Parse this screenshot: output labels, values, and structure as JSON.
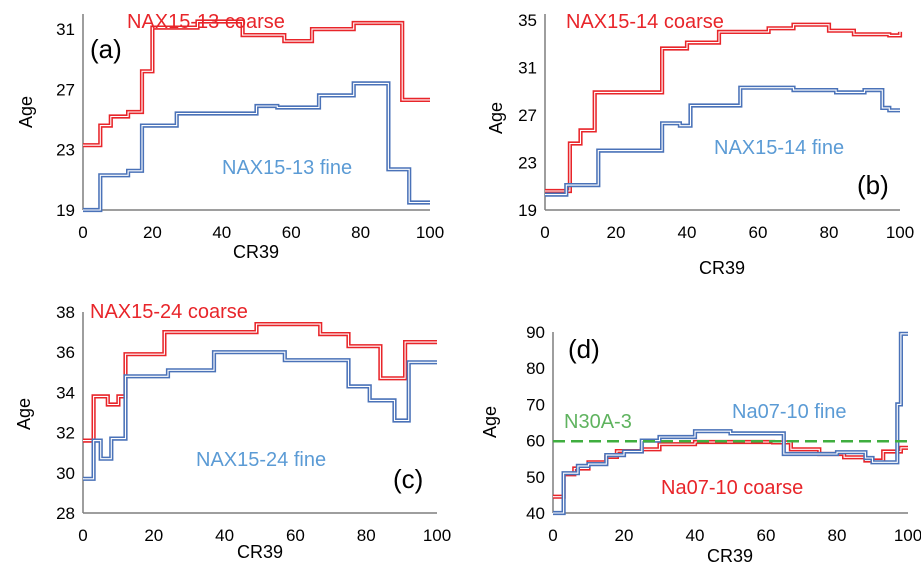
{
  "chart_data": [
    {
      "type": "line",
      "panel": "(a)",
      "xlabel": "CR39",
      "ylabel": "Age",
      "xlim": [
        0,
        100
      ],
      "ylim": [
        19,
        32
      ],
      "xticks": [
        0,
        20,
        40,
        60,
        80,
        100
      ],
      "yticks": [
        19,
        23,
        27,
        31
      ],
      "grid": false,
      "series": [
        {
          "name": "NAX15-13 coarse",
          "color": "#e8252a",
          "steps": [
            [
              0,
              23.3
            ],
            [
              5,
              24.6
            ],
            [
              8,
              25.2
            ],
            [
              13,
              25.5
            ],
            [
              17,
              28.2
            ],
            [
              20,
              31.1
            ],
            [
              33,
              31.5
            ],
            [
              46,
              30.6
            ],
            [
              58,
              30.2
            ],
            [
              66,
              31.0
            ],
            [
              78,
              31.4
            ],
            [
              92,
              26.3
            ],
            [
              100,
              26.3
            ]
          ]
        },
        {
          "name": "NAX15-13 fine",
          "color": "#4a72b8",
          "steps": [
            [
              0,
              19.0
            ],
            [
              5,
              21.3
            ],
            [
              13,
              21.6
            ],
            [
              17,
              24.6
            ],
            [
              27,
              25.4
            ],
            [
              50,
              25.9
            ],
            [
              56,
              25.8
            ],
            [
              68,
              26.6
            ],
            [
              78,
              27.4
            ],
            [
              88,
              21.7
            ],
            [
              94,
              19.5
            ],
            [
              100,
              19.5
            ]
          ]
        }
      ]
    },
    {
      "type": "line",
      "panel": "(b)",
      "xlabel": "CR39",
      "ylabel": "Age",
      "xlim": [
        0,
        100
      ],
      "ylim": [
        19,
        35
      ],
      "xticks": [
        0,
        20,
        40,
        60,
        80,
        100
      ],
      "yticks": [
        19,
        23,
        27,
        31,
        35
      ],
      "grid": false,
      "series": [
        {
          "name": "NAX15-14 coarse",
          "color": "#e8252a",
          "steps": [
            [
              0,
              20.6
            ],
            [
              7,
              24.6
            ],
            [
              10,
              25.7
            ],
            [
              14,
              28.9
            ],
            [
              33,
              32.6
            ],
            [
              40,
              33.1
            ],
            [
              49,
              34.0
            ],
            [
              63,
              34.3
            ],
            [
              70,
              34.6
            ],
            [
              80,
              34.1
            ],
            [
              87,
              33.8
            ],
            [
              97,
              33.7
            ],
            [
              100,
              34.0
            ]
          ]
        },
        {
          "name": "NAX15-14 fine",
          "color": "#4a72b8",
          "steps": [
            [
              0,
              20.3
            ],
            [
              6,
              21.1
            ],
            [
              15,
              24.0
            ],
            [
              33,
              26.3
            ],
            [
              38,
              26.1
            ],
            [
              41,
              27.8
            ],
            [
              55,
              29.3
            ],
            [
              70,
              29.1
            ],
            [
              82,
              28.9
            ],
            [
              90,
              29.1
            ],
            [
              95,
              27.6
            ],
            [
              97,
              27.4
            ],
            [
              100,
              27.4
            ]
          ]
        }
      ]
    },
    {
      "type": "line",
      "panel": "(c)",
      "xlabel": "CR39",
      "ylabel": "Age",
      "xlim": [
        0,
        100
      ],
      "ylim": [
        28,
        38
      ],
      "xticks": [
        0,
        20,
        40,
        60,
        80,
        100
      ],
      "yticks": [
        28,
        30,
        32,
        34,
        36,
        38
      ],
      "grid": false,
      "series": [
        {
          "name": "NAX15-24 coarse",
          "color": "#e8252a",
          "steps": [
            [
              0,
              31.6
            ],
            [
              3,
              33.8
            ],
            [
              7,
              33.4
            ],
            [
              10,
              33.8
            ],
            [
              12,
              35.9
            ],
            [
              23,
              37.0
            ],
            [
              49,
              37.4
            ],
            [
              67,
              36.9
            ],
            [
              75,
              36.3
            ],
            [
              84,
              34.7
            ],
            [
              91,
              36.5
            ],
            [
              100,
              36.5
            ]
          ]
        },
        {
          "name": "NAX15-24 fine",
          "color": "#4a72b8",
          "steps": [
            [
              0,
              29.7
            ],
            [
              3,
              31.6
            ],
            [
              5,
              30.7
            ],
            [
              8,
              31.7
            ],
            [
              12,
              34.8
            ],
            [
              24,
              35.1
            ],
            [
              37,
              36.0
            ],
            [
              57,
              35.6
            ],
            [
              75,
              34.3
            ],
            [
              81,
              33.6
            ],
            [
              88,
              32.6
            ],
            [
              92,
              35.5
            ],
            [
              100,
              35.5
            ]
          ]
        }
      ]
    },
    {
      "type": "line",
      "panel": "(d)",
      "xlabel": "CR39",
      "ylabel": "Age",
      "xlim": [
        0,
        100
      ],
      "ylim": [
        40,
        90
      ],
      "xticks": [
        0,
        20,
        40,
        60,
        80,
        100
      ],
      "yticks": [
        40,
        50,
        60,
        70,
        80,
        90
      ],
      "grid": false,
      "series": [
        {
          "name": "Na07-10 coarse",
          "color": "#e8252a",
          "steps": [
            [
              0,
              44.5
            ],
            [
              3,
              50.7
            ],
            [
              6,
              52.3
            ],
            [
              10,
              54.0
            ],
            [
              15,
              55.5
            ],
            [
              18,
              57.1
            ],
            [
              25,
              57.6
            ],
            [
              30,
              59.0
            ],
            [
              40,
              59.6
            ],
            [
              62,
              59.5
            ],
            [
              67,
              57.6
            ],
            [
              75,
              56.3
            ],
            [
              82,
              55.4
            ],
            [
              88,
              54.5
            ],
            [
              93,
              57.0
            ],
            [
              98,
              58.0
            ],
            [
              100,
              58.0
            ]
          ]
        },
        {
          "name": "Na07-10 fine",
          "color": "#4a72b8",
          "steps": [
            [
              0,
              40.0
            ],
            [
              3,
              51.0
            ],
            [
              7,
              53.0
            ],
            [
              10,
              53.5
            ],
            [
              15,
              56.0
            ],
            [
              20,
              57.0
            ],
            [
              25,
              60.0
            ],
            [
              30,
              61.0
            ],
            [
              40,
              62.6
            ],
            [
              50,
              62.0
            ],
            [
              65,
              56.3
            ],
            [
              80,
              56.8
            ],
            [
              88,
              55.2
            ],
            [
              90,
              54.0
            ],
            [
              97,
              70.0
            ],
            [
              98,
              89.5
            ],
            [
              100,
              89.5
            ]
          ]
        },
        {
          "name": "N30A-3",
          "color": "#3fae3f",
          "dashed": true,
          "steps": [
            [
              0,
              59.8
            ],
            [
              100,
              59.8
            ]
          ]
        }
      ]
    }
  ]
}
